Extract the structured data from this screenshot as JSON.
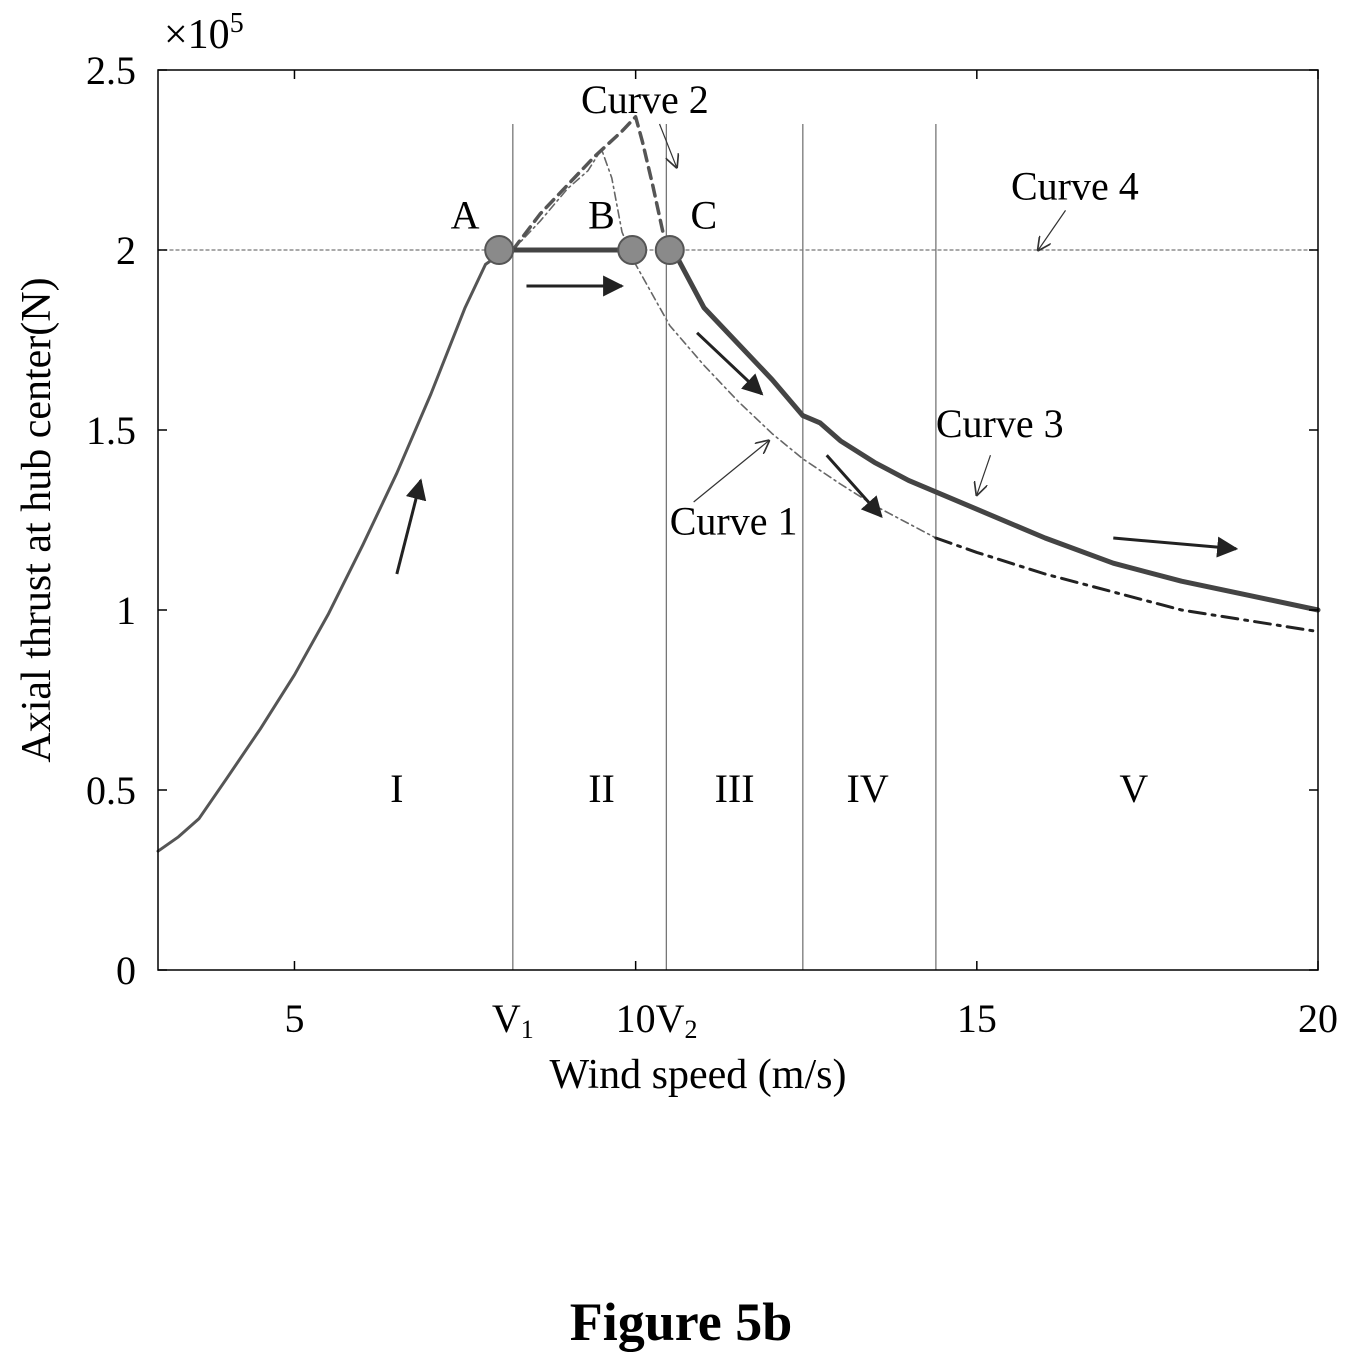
{
  "chart_data": {
    "type": "line",
    "title": "",
    "xlabel": "Wind speed (m/s)",
    "ylabel": "Axial thrust at hub center(N)",
    "xlim": [
      3,
      20
    ],
    "ylim": [
      0,
      2.5
    ],
    "y_scale_factor": "×10^5",
    "y_exponent_base": "×10",
    "y_exponent": "5",
    "x_ticks": [
      {
        "value": 5,
        "label": "5"
      },
      {
        "value": 8.2,
        "label": "V",
        "sub": "1"
      },
      {
        "value": 10,
        "label": "10"
      },
      {
        "value": 10.6,
        "label": "V",
        "sub": "2"
      },
      {
        "value": 15,
        "label": "15"
      },
      {
        "value": 20,
        "label": "20"
      }
    ],
    "y_ticks": [
      {
        "value": 0,
        "label": "0"
      },
      {
        "value": 0.5,
        "label": "0.5"
      },
      {
        "value": 1,
        "label": "1"
      },
      {
        "value": 1.5,
        "label": "1.5"
      },
      {
        "value": 2,
        "label": "2"
      },
      {
        "value": 2.5,
        "label": "2.5"
      }
    ],
    "grid": false,
    "region_boundaries": [
      8.2,
      10.45,
      12.45,
      14.4
    ],
    "regions": [
      {
        "label": "I",
        "x": 6.5,
        "y": 0.5
      },
      {
        "label": "II",
        "x": 9.5,
        "y": 0.5
      },
      {
        "label": "III",
        "x": 11.45,
        "y": 0.5
      },
      {
        "label": "IV",
        "x": 13.4,
        "y": 0.5
      },
      {
        "label": "V",
        "x": 17.3,
        "y": 0.5
      }
    ],
    "series": [
      {
        "key": "rise",
        "style": "solid-medium",
        "x": [
          3,
          3.3,
          3.6,
          4,
          4.5,
          5,
          5.5,
          6,
          6.5,
          7,
          7.5,
          7.8,
          8.1
        ],
        "y": [
          0.33,
          0.37,
          0.42,
          0.53,
          0.67,
          0.82,
          0.99,
          1.18,
          1.38,
          1.6,
          1.84,
          1.96,
          2.0
        ]
      },
      {
        "key": "curve1_peak",
        "style": "dashdot-thin",
        "x": [
          8.2,
          8.6,
          9.0,
          9.3,
          9.5,
          9.65,
          9.8,
          10.0,
          10.5,
          11.0,
          11.5,
          12.0,
          12.45,
          13.0,
          13.5,
          14.4
        ],
        "y": [
          2.0,
          2.08,
          2.17,
          2.22,
          2.28,
          2.2,
          2.05,
          1.96,
          1.79,
          1.68,
          1.58,
          1.49,
          1.42,
          1.35,
          1.29,
          1.2
        ]
      },
      {
        "key": "curve1_tail",
        "style": "dashdot-thick",
        "x": [
          14.4,
          15,
          16,
          17,
          18,
          19,
          20
        ],
        "y": [
          1.2,
          1.16,
          1.1,
          1.05,
          1.0,
          0.97,
          0.94
        ]
      },
      {
        "key": "curve2",
        "style": "dashed-thick",
        "x": [
          8.2,
          8.6,
          9.0,
          9.4,
          9.8,
          10.0,
          10.1,
          10.25,
          10.4
        ],
        "y": [
          2.0,
          2.1,
          2.18,
          2.26,
          2.33,
          2.37,
          2.3,
          2.18,
          2.05
        ]
      },
      {
        "key": "curve4",
        "style": "dotted-thin",
        "x": [
          3,
          20
        ],
        "y": [
          2.0,
          2.0
        ]
      },
      {
        "key": "segment_AB",
        "style": "solid-thick",
        "x": [
          8.0,
          9.95
        ],
        "y": [
          2.0,
          2.0
        ]
      },
      {
        "key": "curve3",
        "style": "solid-thick",
        "x": [
          10.55,
          11.0,
          11.5,
          12.0,
          12.45,
          12.7,
          13.0,
          13.5,
          14.0,
          14.5,
          15.0,
          16.0,
          17.0,
          18.0,
          19.0,
          20.0
        ],
        "y": [
          2.0,
          1.84,
          1.74,
          1.64,
          1.54,
          1.52,
          1.47,
          1.41,
          1.36,
          1.32,
          1.28,
          1.2,
          1.13,
          1.08,
          1.04,
          1.0
        ]
      }
    ],
    "points": [
      {
        "label": "A",
        "x": 8.0,
        "y": 2.0,
        "label_x": 7.5,
        "label_y": 2.06
      },
      {
        "label": "B",
        "x": 9.95,
        "y": 2.0,
        "label_x": 9.5,
        "label_y": 2.06
      },
      {
        "label": "C",
        "x": 10.5,
        "y": 2.0,
        "label_x": 11.0,
        "label_y": 2.06
      }
    ],
    "annotations": [
      {
        "label": "Curve 2",
        "x": 9.2,
        "y": 2.38,
        "ax0": 10.35,
        "ay0": 2.35,
        "ax1": 10.6,
        "ay1": 2.23
      },
      {
        "label": "Curve 4",
        "x": 15.5,
        "y": 2.14,
        "ax0": 16.3,
        "ay0": 2.11,
        "ax1": 15.9,
        "ay1": 2.0
      },
      {
        "label": "Curve 3",
        "x": 14.4,
        "y": 1.48,
        "ax0": 15.2,
        "ay0": 1.43,
        "ax1": 15.0,
        "ay1": 1.32
      },
      {
        "label": "Curve 1",
        "x": 10.5,
        "y": 1.21,
        "ax0": 10.85,
        "ay0": 1.3,
        "ax1": 11.95,
        "ay1": 1.47
      }
    ],
    "direction_arrows": [
      {
        "x0": 6.5,
        "y0": 1.1,
        "x1": 6.85,
        "y1": 1.36
      },
      {
        "x0": 8.4,
        "y0": 1.9,
        "x1": 9.8,
        "y1": 1.9
      },
      {
        "x0": 10.9,
        "y0": 1.77,
        "x1": 11.85,
        "y1": 1.6
      },
      {
        "x0": 12.8,
        "y0": 1.43,
        "x1": 13.6,
        "y1": 1.26
      },
      {
        "x0": 17.0,
        "y0": 1.2,
        "x1": 18.8,
        "y1": 1.17
      }
    ],
    "figure_label": "Figure 5b"
  }
}
